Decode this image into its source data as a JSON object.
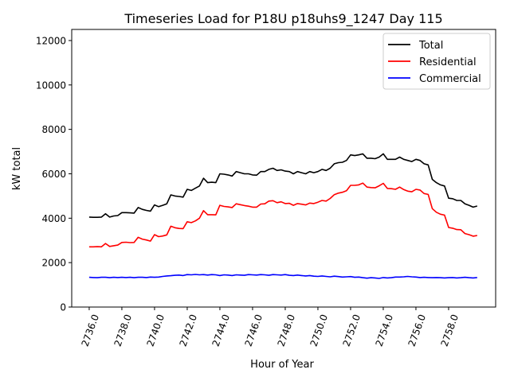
{
  "chart_data": {
    "type": "line",
    "title": "Timeseries Load for P18U p18uhs9_1247  Day 115",
    "xlabel": "Hour of Year",
    "ylabel": "kW total",
    "xlim": [
      2734.93,
      2760.88
    ],
    "ylim": [
      0,
      12500
    ],
    "xticks": [
      2736,
      2738,
      2740,
      2742,
      2744,
      2746,
      2748,
      2750,
      2752,
      2754,
      2756,
      2758
    ],
    "xtick_labels": [
      "2736.0",
      "2738.0",
      "2740.0",
      "2742.0",
      "2744.0",
      "2746.0",
      "2748.0",
      "2750.0",
      "2752.0",
      "2754.0",
      "2756.0",
      "2758.0"
    ],
    "yticks": [
      0,
      2000,
      4000,
      6000,
      8000,
      10000,
      12000
    ],
    "ytick_labels": [
      "0",
      "2000",
      "4000",
      "6000",
      "8000",
      "10000",
      "12000"
    ],
    "grid": false,
    "legend_position": "top-right",
    "x_start": 2736,
    "x_step": 0.25,
    "series": [
      {
        "name": "Total",
        "color": "#000000",
        "values": [
          4050,
          4040,
          4040,
          4050,
          4200,
          4050,
          4100,
          4120,
          4250,
          4250,
          4240,
          4230,
          4480,
          4400,
          4350,
          4320,
          4600,
          4520,
          4580,
          4650,
          5050,
          5000,
          4980,
          4950,
          5300,
          5250,
          5350,
          5450,
          5800,
          5600,
          5620,
          5600,
          6000,
          5980,
          5950,
          5900,
          6100,
          6050,
          6000,
          6000,
          5950,
          5940,
          6100,
          6100,
          6200,
          6250,
          6150,
          6180,
          6120,
          6100,
          6000,
          6100,
          6050,
          6000,
          6100,
          6050,
          6100,
          6200,
          6150,
          6250,
          6450,
          6500,
          6520,
          6600,
          6850,
          6820,
          6850,
          6900,
          6700,
          6700,
          6680,
          6750,
          6900,
          6650,
          6650,
          6650,
          6750,
          6650,
          6600,
          6550,
          6650,
          6600,
          6450,
          6400,
          5750,
          5600,
          5500,
          5450,
          4900,
          4880,
          4800,
          4800,
          4650,
          4580,
          4500,
          4550
        ]
      },
      {
        "name": "Residential",
        "color": "#ff0000",
        "values": [
          2710,
          2710,
          2720,
          2710,
          2860,
          2730,
          2760,
          2790,
          2910,
          2920,
          2900,
          2910,
          3140,
          3060,
          3020,
          2970,
          3260,
          3170,
          3200,
          3250,
          3640,
          3570,
          3540,
          3530,
          3840,
          3800,
          3880,
          4000,
          4340,
          4160,
          4160,
          4150,
          4580,
          4530,
          4510,
          4480,
          4650,
          4610,
          4570,
          4540,
          4500,
          4500,
          4640,
          4650,
          4770,
          4790,
          4700,
          4740,
          4660,
          4670,
          4580,
          4660,
          4630,
          4600,
          4680,
          4660,
          4720,
          4800,
          4770,
          4890,
          5060,
          5130,
          5170,
          5240,
          5480,
          5480,
          5500,
          5580,
          5400,
          5380,
          5370,
          5460,
          5570,
          5340,
          5330,
          5300,
          5400,
          5290,
          5220,
          5190,
          5300,
          5270,
          5110,
          5070,
          4430,
          4270,
          4180,
          4140,
          3580,
          3550,
          3490,
          3480,
          3310,
          3260,
          3190,
          3220
        ]
      },
      {
        "name": "Commercial",
        "color": "#0000ff",
        "values": [
          1340,
          1330,
          1320,
          1340,
          1340,
          1320,
          1340,
          1330,
          1340,
          1330,
          1340,
          1320,
          1340,
          1340,
          1330,
          1350,
          1340,
          1350,
          1380,
          1400,
          1410,
          1430,
          1440,
          1420,
          1460,
          1450,
          1470,
          1450,
          1460,
          1440,
          1460,
          1450,
          1420,
          1450,
          1440,
          1420,
          1450,
          1440,
          1430,
          1460,
          1450,
          1440,
          1460,
          1450,
          1430,
          1460,
          1450,
          1440,
          1460,
          1430,
          1420,
          1440,
          1420,
          1400,
          1420,
          1390,
          1380,
          1400,
          1380,
          1360,
          1390,
          1370,
          1350,
          1360,
          1370,
          1340,
          1350,
          1320,
          1300,
          1320,
          1310,
          1290,
          1330,
          1310,
          1320,
          1350,
          1350,
          1360,
          1380,
          1360,
          1350,
          1330,
          1340,
          1330,
          1320,
          1330,
          1320,
          1310,
          1320,
          1330,
          1310,
          1320,
          1340,
          1320,
          1310,
          1330
        ]
      }
    ]
  }
}
